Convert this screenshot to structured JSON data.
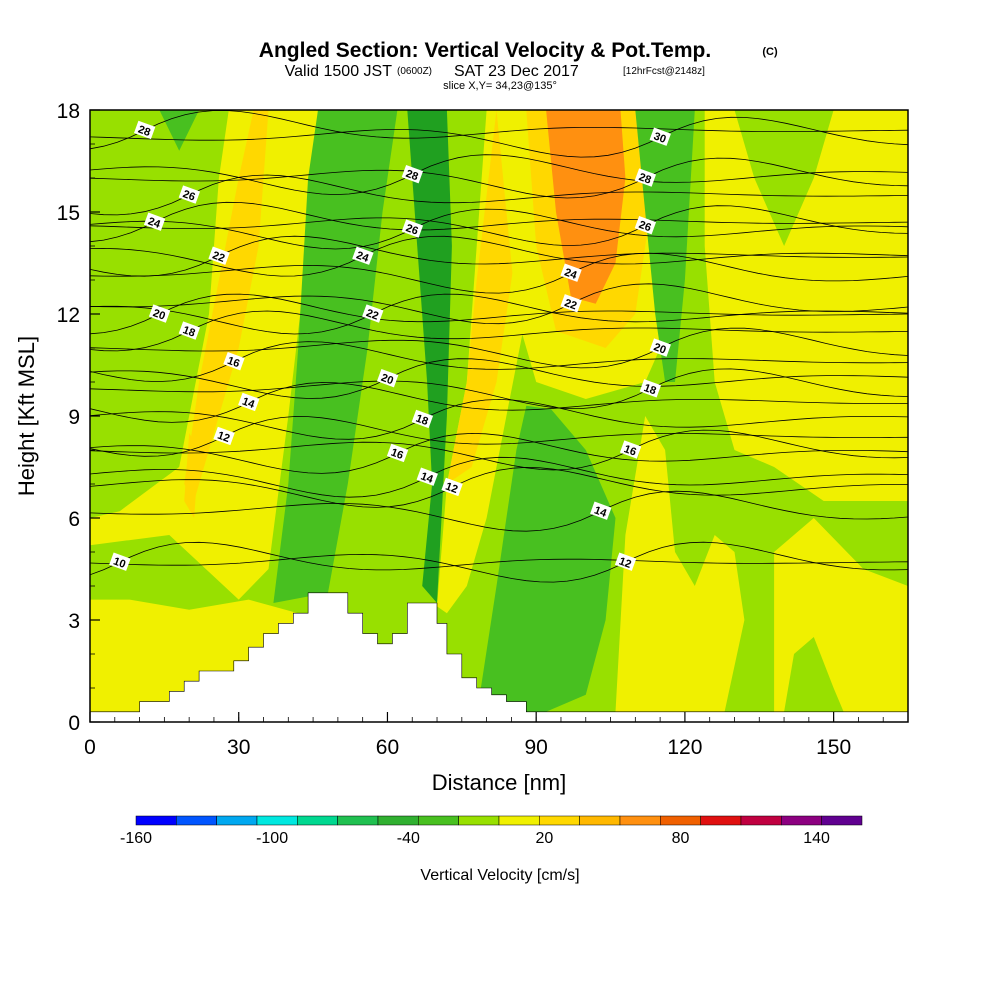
{
  "header": {
    "title": "Angled Section: Vertical Velocity & Pot.Temp.",
    "copyright": "(C)",
    "valid_prefix": "Valid 1500 JST",
    "valid_utc": "(0600Z)",
    "valid_date": "SAT 23 Dec 2017",
    "forecast": "[12hrFcst@2148z]",
    "slice": "slice X,Y= 34,23@135°"
  },
  "chart_data": {
    "type": "heatmap",
    "xlabel": "Distance [nm]",
    "ylabel": "Height [Kft MSL]",
    "xlim": [
      0,
      165
    ],
    "ylim": [
      0,
      18
    ],
    "x_ticks": [
      0,
      30,
      60,
      90,
      120,
      150
    ],
    "y_ticks": [
      0,
      3,
      6,
      9,
      12,
      15,
      18
    ],
    "colorbar": {
      "title": "Vertical Velocity [cm/s]",
      "tick_labels": [
        "-160",
        "-100",
        "-40",
        "20",
        "80",
        "140"
      ],
      "tick_values": [
        -160,
        -100,
        -40,
        20,
        80,
        140
      ],
      "min": -160,
      "max": 160,
      "step": 20,
      "colors": [
        "#0000ff",
        "#0055ff",
        "#00a8f0",
        "#00e8e0",
        "#00d890",
        "#20c050",
        "#30b030",
        "#48c020",
        "#98e000",
        "#f0f000",
        "#ffd800",
        "#ffb800",
        "#ff9010",
        "#f06000",
        "#e01010",
        "#c00040",
        "#8c0080",
        "#600090"
      ]
    },
    "field_colors": {
      "light_green": "#98e000",
      "green": "#48c020",
      "dark_green": "#20a020",
      "yellow": "#f0f000",
      "gold": "#ffd800",
      "orange": "#ff9010"
    },
    "terrain_profile": {
      "x": [
        0,
        10,
        16,
        19,
        22,
        29,
        32,
        35,
        38,
        41,
        44,
        47,
        52,
        55,
        58,
        61,
        64,
        67,
        70,
        72,
        75,
        78,
        81,
        84,
        88,
        90
      ],
      "y": [
        0.3,
        0.6,
        0.9,
        1.2,
        1.5,
        1.8,
        2.2,
        2.6,
        2.9,
        3.2,
        3.8,
        3.8,
        3.2,
        2.6,
        2.3,
        2.6,
        3.5,
        3.5,
        2.9,
        2.0,
        1.3,
        1.0,
        0.8,
        0.6,
        0.3,
        0.3
      ]
    },
    "isentropes": [
      {
        "value": 10,
        "label": "10",
        "label_x": 6,
        "label_y": 4.7
      },
      {
        "value": 12,
        "label": "12",
        "label_x": 27,
        "label_y": 8.4
      },
      {
        "value": 12,
        "label": "12",
        "label_x": 73,
        "label_y": 6.9
      },
      {
        "value": 12,
        "label": "12",
        "label_x": 108,
        "label_y": 4.7
      },
      {
        "value": 14,
        "label": "14",
        "label_x": 32,
        "label_y": 9.4
      },
      {
        "value": 14,
        "label": "14",
        "label_x": 68,
        "label_y": 7.2
      },
      {
        "value": 14,
        "label": "14",
        "label_x": 103,
        "label_y": 6.2
      },
      {
        "value": 16,
        "label": "16",
        "label_x": 29,
        "label_y": 10.6
      },
      {
        "value": 16,
        "label": "16",
        "label_x": 62,
        "label_y": 7.9
      },
      {
        "value": 16,
        "label": "16",
        "label_x": 109,
        "label_y": 8.0
      },
      {
        "value": 18,
        "label": "18",
        "label_x": 20,
        "label_y": 11.5
      },
      {
        "value": 18,
        "label": "18",
        "label_x": 67,
        "label_y": 8.9
      },
      {
        "value": 18,
        "label": "18",
        "label_x": 113,
        "label_y": 9.8
      },
      {
        "value": 20,
        "label": "20",
        "label_x": 14,
        "label_y": 12.0
      },
      {
        "value": 20,
        "label": "20",
        "label_x": 60,
        "label_y": 10.1
      },
      {
        "value": 20,
        "label": "20",
        "label_x": 115,
        "label_y": 11.0
      },
      {
        "value": 22,
        "label": "22",
        "label_x": 26,
        "label_y": 13.7
      },
      {
        "value": 22,
        "label": "22",
        "label_x": 57,
        "label_y": 12.0
      },
      {
        "value": 22,
        "label": "22",
        "label_x": 97,
        "label_y": 12.3
      },
      {
        "value": 24,
        "label": "24",
        "label_x": 13,
        "label_y": 14.7
      },
      {
        "value": 24,
        "label": "24",
        "label_x": 55,
        "label_y": 13.7
      },
      {
        "value": 24,
        "label": "24",
        "label_x": 97,
        "label_y": 13.2
      },
      {
        "value": 26,
        "label": "26",
        "label_x": 20,
        "label_y": 15.5
      },
      {
        "value": 26,
        "label": "26",
        "label_x": 65,
        "label_y": 14.5
      },
      {
        "value": 26,
        "label": "26",
        "label_x": 112,
        "label_y": 14.6
      },
      {
        "value": 28,
        "label": "28",
        "label_x": 11,
        "label_y": 17.4
      },
      {
        "value": 28,
        "label": "28",
        "label_x": 65,
        "label_y": 16.1
      },
      {
        "value": 28,
        "label": "28",
        "label_x": 112,
        "label_y": 16.0
      },
      {
        "value": 30,
        "label": "30",
        "label_x": 115,
        "label_y": 17.2
      }
    ]
  }
}
